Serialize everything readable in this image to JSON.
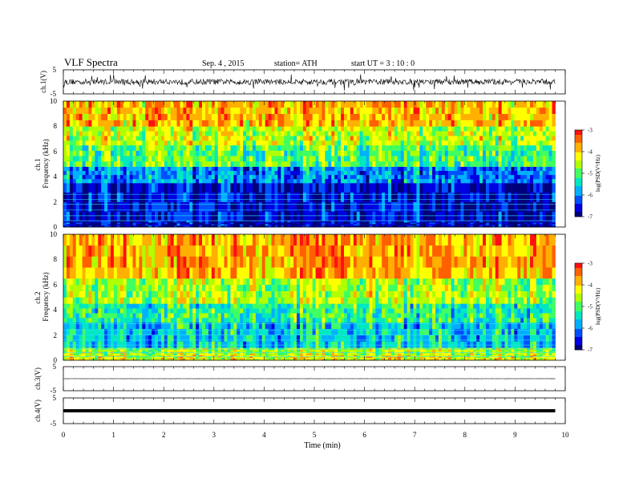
{
  "header": {
    "title": "VLF  Spectra",
    "date": "Sep. 4  , 2015",
    "station": "station= ATH",
    "start": "start  UT  =   3  : 10 : 0"
  },
  "chart_data": [
    {
      "type": "line",
      "panel": "ch1-waveform",
      "ylabel": "ch.1(V)",
      "yticks": [
        "5",
        "-5"
      ],
      "ylim": [
        -5,
        5
      ],
      "xlim": [
        0,
        10
      ],
      "trace_extent_min": [
        0,
        9.8
      ],
      "baseline": 0,
      "spread": 1.2,
      "color": "#000000"
    },
    {
      "type": "heatmap",
      "panel": "ch1-spectrogram",
      "ylabel": "ch.1\nFrequency  (kHz)",
      "ylim": [
        0,
        10
      ],
      "yticks": [
        "0",
        "2",
        "4",
        "6",
        "8",
        "10"
      ],
      "xlim": [
        0,
        10
      ],
      "trace_extent_min": [
        0,
        9.8
      ],
      "levels_by_band": [
        {
          "f_khz": [
            0,
            0.5
          ],
          "log_psd": -6.8
        },
        {
          "f_khz": [
            0.5,
            3.5
          ],
          "log_psd": -6.7
        },
        {
          "f_khz": [
            3.5,
            4.8
          ],
          "log_psd": -6.0
        },
        {
          "f_khz": [
            4.8,
            6.5
          ],
          "log_psd": -5.0
        },
        {
          "f_khz": [
            6.5,
            8.0
          ],
          "log_psd": -4.5
        },
        {
          "f_khz": [
            8.0,
            10.0
          ],
          "log_psd": -3.9
        }
      ],
      "line_freqs_khz": [
        0.5,
        0.9,
        1.35,
        1.8,
        2.2,
        2.6
      ],
      "colorbar": {
        "label": "log(PSD(V²/Hz)",
        "ticks": [
          "-3",
          "-4",
          "-5",
          "-6",
          "-7"
        ],
        "range": [
          -7,
          -3
        ]
      }
    },
    {
      "type": "heatmap",
      "panel": "ch2-spectrogram",
      "ylabel": "ch.2\nFrequency  (kHz)",
      "ylim": [
        0,
        10
      ],
      "yticks": [
        "0",
        "2",
        "4",
        "6",
        "8",
        "10"
      ],
      "xlim": [
        0,
        10
      ],
      "trace_extent_min": [
        0,
        9.8
      ],
      "levels_by_band": [
        {
          "f_khz": [
            0,
            0.4
          ],
          "log_psd": -4.3
        },
        {
          "f_khz": [
            0.4,
            1.0
          ],
          "log_psd": -4.6
        },
        {
          "f_khz": [
            1.0,
            3.0
          ],
          "log_psd": -5.6
        },
        {
          "f_khz": [
            3.0,
            4.5
          ],
          "log_psd": -5.2
        },
        {
          "f_khz": [
            4.5,
            6.5
          ],
          "log_psd": -4.6
        },
        {
          "f_khz": [
            6.5,
            10.0
          ],
          "log_psd": -3.8
        }
      ],
      "line_freqs_khz": [
        0.3,
        0.6,
        0.9,
        1.2,
        1.6,
        2.0,
        2.4,
        2.9
      ],
      "colorbar": {
        "label": "log(PSD(V²/Hz)",
        "ticks": [
          "-3",
          "-4",
          "-5",
          "-6",
          "-7"
        ],
        "range": [
          -7,
          -3
        ]
      }
    },
    {
      "type": "line",
      "panel": "ch3-waveform",
      "ylabel": "ch.3(V)",
      "yticks": [
        "5",
        "-5"
      ],
      "ylim": [
        -5,
        5
      ],
      "xlim": [
        0,
        10
      ],
      "trace_extent_min": [
        0,
        9.8
      ],
      "baseline": 0,
      "spread": 0.05,
      "color": "#000000"
    },
    {
      "type": "line",
      "panel": "ch4-waveform",
      "ylabel": "ch.4(V)",
      "yticks": [
        "5",
        "-5"
      ],
      "ylim": [
        -5,
        5
      ],
      "xlim": [
        0,
        10
      ],
      "trace_extent_min": [
        0,
        9.8
      ],
      "baseline": 0,
      "spread": 0,
      "color": "#000000"
    }
  ],
  "xaxis": {
    "label": "Time  (min)",
    "ticks": [
      "0",
      "1",
      "2",
      "3",
      "4",
      "5",
      "6",
      "7",
      "8",
      "9",
      "10"
    ],
    "range": [
      0,
      10
    ]
  },
  "colorscale": [
    "#00007a",
    "#0000e0",
    "#0050ff",
    "#00b0ff",
    "#00e8c0",
    "#40ff60",
    "#b0ff00",
    "#ffff00",
    "#ffb000",
    "#ff6000",
    "#ff1010"
  ]
}
